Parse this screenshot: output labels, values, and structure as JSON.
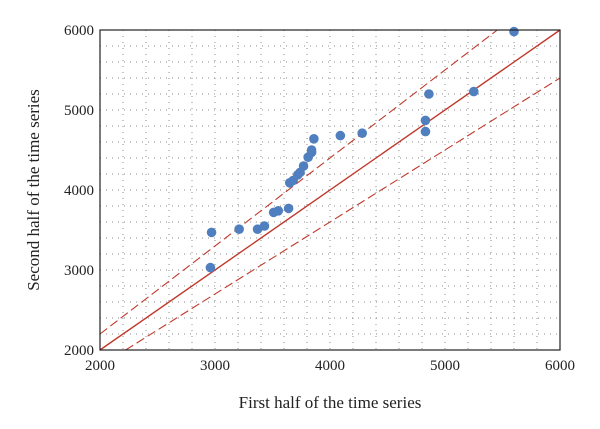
{
  "chart_data": {
    "type": "scatter",
    "title": "",
    "xlabel": "First half of the time series",
    "ylabel": "Second half of the time series",
    "xlim": [
      2000,
      6000
    ],
    "ylim": [
      2000,
      6000
    ],
    "xticks": [
      "2000",
      "3000",
      "4000",
      "5000",
      "6000"
    ],
    "yticks": [
      "2000",
      "3000",
      "4000",
      "5000",
      "6000"
    ],
    "grid": "dotted",
    "legend": "none",
    "colors": {
      "points": "#4f7fbf",
      "line": "#c0392b",
      "grid": "#8c8c8c",
      "frame": "#222222"
    },
    "series": [
      {
        "values": [
          [
            2970,
            3470
          ],
          [
            2960,
            3030
          ],
          [
            3210,
            3510
          ],
          [
            3370,
            3510
          ],
          [
            3430,
            3550
          ],
          [
            3510,
            3720
          ],
          [
            3550,
            3740
          ],
          [
            3640,
            3770
          ],
          [
            3650,
            4090
          ],
          [
            3680,
            4120
          ],
          [
            3720,
            4190
          ],
          [
            3740,
            4220
          ],
          [
            3770,
            4300
          ],
          [
            3810,
            4410
          ],
          [
            3840,
            4470
          ],
          [
            3840,
            4500
          ],
          [
            3860,
            4640
          ],
          [
            4090,
            4680
          ],
          [
            4280,
            4710
          ],
          [
            4830,
            4730
          ],
          [
            4830,
            4870
          ],
          [
            4860,
            5200
          ],
          [
            5250,
            5230
          ],
          [
            5600,
            5980
          ]
        ]
      }
    ],
    "reference_lines": [
      {
        "style": "solid",
        "slope": 1,
        "intercept": 0
      },
      {
        "style": "dashed",
        "slope": 1.1,
        "intercept": 0
      },
      {
        "style": "dashed",
        "slope": 0.9,
        "intercept": 0
      }
    ]
  }
}
